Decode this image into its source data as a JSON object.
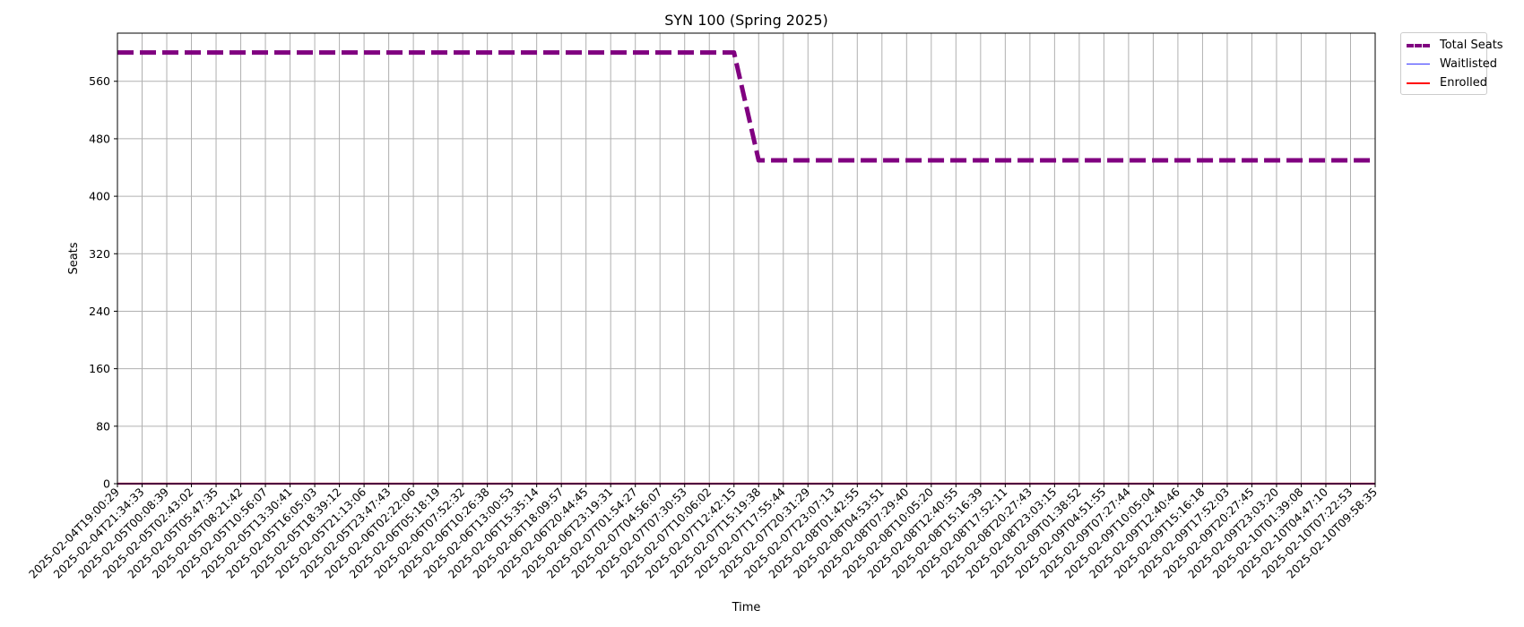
{
  "chart_data": {
    "type": "line",
    "title": "SYN 100 (Spring 2025)",
    "xlabel": "Time",
    "ylabel": "Seats",
    "ylim": [
      0,
      627
    ],
    "yticks": [
      0,
      80,
      160,
      240,
      320,
      400,
      480,
      560
    ],
    "grid": true,
    "legend_placement": "outside top-right",
    "x": [
      "2025-02-04T19:00:29",
      "2025-02-04T21:34:33",
      "2025-02-05T00:08:39",
      "2025-02-05T02:43:02",
      "2025-02-05T05:47:35",
      "2025-02-05T08:21:42",
      "2025-02-05T10:56:07",
      "2025-02-05T13:30:41",
      "2025-02-05T16:05:03",
      "2025-02-05T18:39:12",
      "2025-02-05T21:13:06",
      "2025-02-05T23:47:43",
      "2025-02-06T02:22:06",
      "2025-02-06T05:18:19",
      "2025-02-06T07:52:32",
      "2025-02-06T10:26:38",
      "2025-02-06T13:00:53",
      "2025-02-06T15:35:14",
      "2025-02-06T18:09:57",
      "2025-02-06T20:44:45",
      "2025-02-06T23:19:31",
      "2025-02-07T01:54:27",
      "2025-02-07T04:56:07",
      "2025-02-07T07:30:53",
      "2025-02-07T10:06:02",
      "2025-02-07T12:42:15",
      "2025-02-07T15:19:38",
      "2025-02-07T17:55:44",
      "2025-02-07T20:31:29",
      "2025-02-07T23:07:13",
      "2025-02-08T01:42:55",
      "2025-02-08T04:53:51",
      "2025-02-08T07:29:40",
      "2025-02-08T10:05:20",
      "2025-02-08T12:40:55",
      "2025-02-08T15:16:39",
      "2025-02-08T17:52:11",
      "2025-02-08T20:27:43",
      "2025-02-08T23:03:15",
      "2025-02-09T01:38:52",
      "2025-02-09T04:51:55",
      "2025-02-09T07:27:44",
      "2025-02-09T10:05:04",
      "2025-02-09T12:40:46",
      "2025-02-09T15:16:18",
      "2025-02-09T17:52:03",
      "2025-02-09T20:27:45",
      "2025-02-09T23:03:20",
      "2025-02-10T01:39:08",
      "2025-02-10T04:47:10",
      "2025-02-10T07:22:53",
      "2025-02-10T09:58:35"
    ],
    "series": [
      {
        "name": "Total Seats",
        "color": "#800080",
        "style": "dashed",
        "values": [
          600,
          600,
          600,
          600,
          600,
          600,
          600,
          600,
          600,
          600,
          600,
          600,
          600,
          600,
          600,
          600,
          600,
          600,
          600,
          600,
          600,
          600,
          600,
          600,
          600,
          600,
          450,
          450,
          450,
          450,
          450,
          450,
          450,
          450,
          450,
          450,
          450,
          450,
          450,
          450,
          450,
          450,
          450,
          450,
          450,
          450,
          450,
          450,
          450,
          450,
          450,
          450
        ]
      },
      {
        "name": "Waitlisted",
        "color": "#3333ff",
        "style": "solid",
        "values": [
          0,
          0,
          0,
          0,
          0,
          0,
          0,
          0,
          0,
          0,
          0,
          0,
          0,
          0,
          0,
          0,
          0,
          0,
          0,
          0,
          0,
          0,
          0,
          0,
          0,
          0,
          0,
          0,
          0,
          0,
          0,
          0,
          0,
          0,
          0,
          0,
          0,
          0,
          0,
          0,
          0,
          0,
          0,
          0,
          0,
          0,
          0,
          0,
          0,
          0,
          0,
          0
        ]
      },
      {
        "name": "Enrolled",
        "color": "#ff0000",
        "style": "solid",
        "values": [
          0,
          0,
          0,
          0,
          0,
          0,
          0,
          0,
          0,
          0,
          0,
          0,
          0,
          0,
          0,
          0,
          0,
          0,
          0,
          0,
          0,
          0,
          0,
          0,
          0,
          0,
          0,
          0,
          0,
          0,
          0,
          0,
          0,
          0,
          0,
          0,
          0,
          0,
          0,
          0,
          0,
          0,
          0,
          0,
          0,
          0,
          0,
          0,
          0,
          0,
          0,
          0
        ]
      }
    ]
  }
}
